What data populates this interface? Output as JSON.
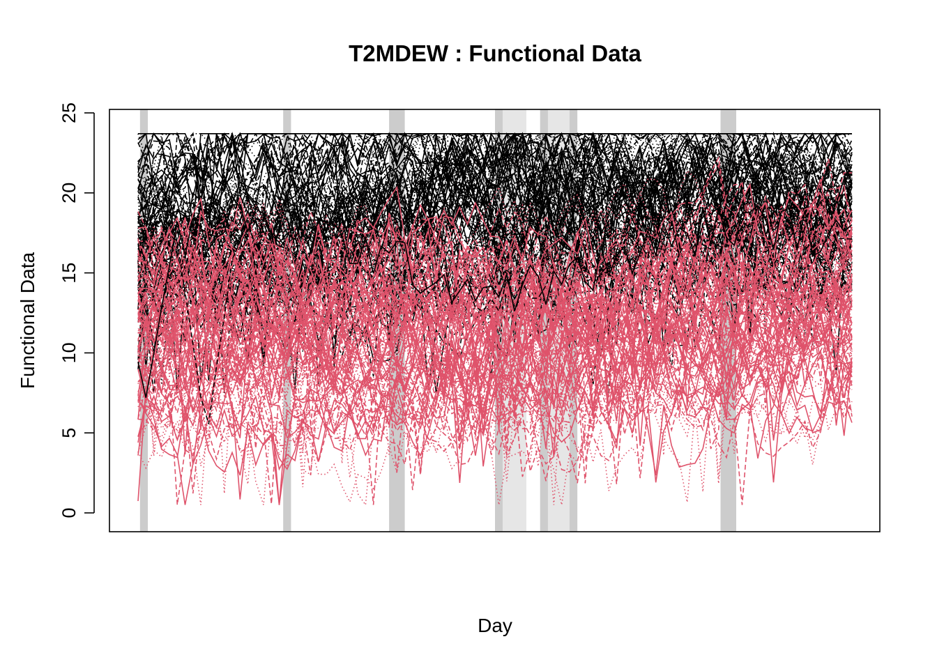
{
  "chart_data": {
    "type": "line",
    "title": "T2MDEW : Functional Data",
    "xlabel": "Day",
    "ylabel": "Functional Data",
    "ylim": [
      0,
      25
    ],
    "yticks": [
      0,
      5,
      10,
      15,
      20,
      25
    ],
    "x_tick_labels": [],
    "grid": false,
    "legend": "none",
    "n_days": 365,
    "series_groups": [
      {
        "color": "#000000",
        "approx_count": 90,
        "line_styles": [
          "solid",
          "dashed",
          "dotted"
        ],
        "range": [
          7,
          24
        ]
      },
      {
        "color": "#DF536B",
        "approx_count": 90,
        "line_styles": [
          "solid",
          "dashed",
          "dotted"
        ],
        "range": [
          0,
          23.5
        ]
      }
    ],
    "shaded_day_ranges": [
      {
        "start": 2,
        "end": 6,
        "shade": "#CCCCCC"
      },
      {
        "start": 75,
        "end": 79,
        "shade": "#CCCCCC"
      },
      {
        "start": 129,
        "end": 137,
        "shade": "#CCCCCC"
      },
      {
        "start": 183,
        "end": 187,
        "shade": "#CCCCCC"
      },
      {
        "start": 187,
        "end": 199,
        "shade": "#E6E6E6"
      },
      {
        "start": 206,
        "end": 210,
        "shade": "#CCCCCC"
      },
      {
        "start": 210,
        "end": 221,
        "shade": "#E6E6E6"
      },
      {
        "start": 221,
        "end": 225,
        "shade": "#CCCCCC"
      },
      {
        "start": 298,
        "end": 306,
        "shade": "#CCCCCC"
      }
    ]
  }
}
